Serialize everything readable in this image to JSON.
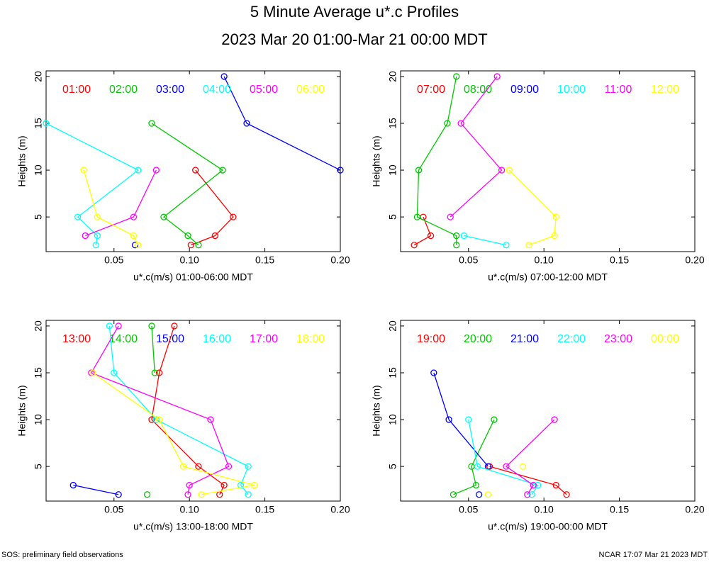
{
  "title": "5 Minute Average u*.c Profiles",
  "subtitle": "2023 Mar 20 01:00-Mar 21 00:00 MDT",
  "footer": {
    "left": "SOS: preliminary field observations",
    "right": "NCAR 17:07 Mar 21 2023 MDT"
  },
  "chart_data": [
    {
      "type": "line",
      "xlabel": "u*.c(m/s) 01:00-06:00 MDT",
      "ylabel": "Heights (m)",
      "y": [
        2,
        3,
        5,
        10,
        15,
        20
      ],
      "xlim": [
        0.005,
        0.2
      ],
      "xticks": [
        0.05,
        {
          "value": 0.1,
          "label": "0.10"
        },
        0.15,
        {
          "value": 0.2,
          "label": "0.20"
        }
      ],
      "ylim": [
        1.3,
        20.6
      ],
      "yticks": [
        5,
        10,
        15,
        20
      ],
      "series": [
        {
          "name": "01:00",
          "color": "#ff0000",
          "values": [
            0.101,
            0.117,
            0.129,
            0.104,
            null,
            null
          ]
        },
        {
          "name": "02:00",
          "color": "#00c800",
          "values": [
            0.106,
            0.099,
            0.083,
            0.122,
            0.075,
            null
          ]
        },
        {
          "name": "03:00",
          "color": "#0000ff",
          "values": [
            0.064,
            null,
            null,
            0.2,
            0.138,
            0.123
          ]
        },
        {
          "name": "04:00",
          "color": "#00ffff",
          "values": [
            0.038,
            0.039,
            0.026,
            0.066,
            0.005,
            null
          ]
        },
        {
          "name": "05:00",
          "color": "#ff00ff",
          "values": [
            null,
            0.031,
            0.063,
            0.078,
            null,
            null
          ]
        },
        {
          "name": "06:00",
          "color": "#ffff00",
          "values": [
            0.066,
            0.063,
            0.039,
            0.03,
            null,
            null
          ]
        }
      ]
    },
    {
      "type": "line",
      "xlabel": "u*.c(m/s) 07:00-12:00 MDT",
      "ylabel": "Heights (m)",
      "y": [
        2,
        3,
        5,
        10,
        15,
        20
      ],
      "xlim": [
        0.005,
        0.2
      ],
      "xticks": [
        0.05,
        {
          "value": 0.1,
          "label": "0.10"
        },
        0.15,
        {
          "value": 0.2,
          "label": "0.20"
        }
      ],
      "ylim": [
        1.3,
        20.6
      ],
      "yticks": [
        5,
        10,
        15,
        20
      ],
      "series": [
        {
          "name": "07:00",
          "color": "#ff0000",
          "values": [
            0.014,
            0.025,
            0.02,
            null,
            null,
            null
          ]
        },
        {
          "name": "08:00",
          "color": "#00c800",
          "values": [
            0.042,
            0.042,
            0.016,
            0.017,
            0.036,
            0.042
          ]
        },
        {
          "name": "09:00",
          "color": "#0000ff",
          "values": [
            null,
            null,
            null,
            null,
            null,
            null
          ]
        },
        {
          "name": "10:00",
          "color": "#00ffff",
          "values": [
            0.075,
            0.047,
            null,
            null,
            null,
            null
          ]
        },
        {
          "name": "11:00",
          "color": "#ff00ff",
          "values": [
            null,
            null,
            0.038,
            0.072,
            0.045,
            0.069
          ]
        },
        {
          "name": "12:00",
          "color": "#ffff00",
          "values": [
            0.09,
            0.107,
            0.108,
            0.077,
            null,
            null
          ]
        }
      ]
    },
    {
      "type": "line",
      "xlabel": "u*.c(m/s) 13:00-18:00 MDT",
      "ylabel": "Heights (m)",
      "y": [
        2,
        3,
        5,
        10,
        15,
        20
      ],
      "xlim": [
        0.005,
        0.2
      ],
      "xticks": [
        0.05,
        {
          "value": 0.1,
          "label": "0.10"
        },
        0.15,
        {
          "value": 0.2,
          "label": "0.20"
        }
      ],
      "ylim": [
        1.3,
        20.6
      ],
      "yticks": [
        5,
        10,
        15,
        20
      ],
      "series": [
        {
          "name": "13:00",
          "color": "#ff0000",
          "values": [
            0.12,
            0.123,
            0.106,
            0.075,
            0.08,
            0.09
          ]
        },
        {
          "name": "14:00",
          "color": "#00c800",
          "values": [
            0.072,
            null,
            null,
            null,
            0.077,
            0.075
          ]
        },
        {
          "name": "15:00",
          "color": "#0000ff",
          "values": [
            0.053,
            0.023,
            null,
            null,
            null,
            null
          ]
        },
        {
          "name": "16:00",
          "color": "#00ffff",
          "values": [
            0.139,
            0.134,
            0.139,
            0.078,
            0.05,
            0.047
          ]
        },
        {
          "name": "17:00",
          "color": "#ff00ff",
          "values": [
            0.099,
            0.1,
            0.126,
            0.114,
            0.035,
            0.053
          ]
        },
        {
          "name": "18:00",
          "color": "#ffff00",
          "values": [
            0.108,
            0.143,
            0.096,
            0.08,
            0.036,
            null
          ]
        }
      ]
    },
    {
      "type": "line",
      "xlabel": "u*.c(m/s) 19:00-00:00 MDT",
      "ylabel": "Heights (m)",
      "y": [
        2,
        3,
        5,
        10,
        15,
        20
      ],
      "xlim": [
        0.005,
        0.2
      ],
      "xticks": [
        0.05,
        {
          "value": 0.1,
          "label": "0.10"
        },
        0.15,
        {
          "value": 0.2,
          "label": "0.20"
        }
      ],
      "ylim": [
        1.3,
        20.6
      ],
      "yticks": [
        5,
        10,
        15,
        20
      ],
      "series": [
        {
          "name": "19:00",
          "color": "#ff0000",
          "values": [
            0.115,
            0.108,
            0.064,
            null,
            null,
            null
          ]
        },
        {
          "name": "20:00",
          "color": "#00c800",
          "values": [
            0.04,
            0.055,
            0.052,
            0.067,
            null,
            null
          ]
        },
        {
          "name": "21:00",
          "color": "#0000ff",
          "values": [
            0.057,
            null,
            0.063,
            0.037,
            0.027,
            null
          ]
        },
        {
          "name": "22:00",
          "color": "#00ffff",
          "values": [
            0.092,
            0.096,
            0.056,
            0.05,
            null,
            null
          ]
        },
        {
          "name": "23:00",
          "color": "#ff00ff",
          "values": [
            0.089,
            0.093,
            0.075,
            0.107,
            null,
            null
          ]
        },
        {
          "name": "00:00",
          "color": "#ffff00",
          "values": [
            0.063,
            null,
            0.086,
            null,
            null,
            null
          ]
        }
      ]
    }
  ]
}
